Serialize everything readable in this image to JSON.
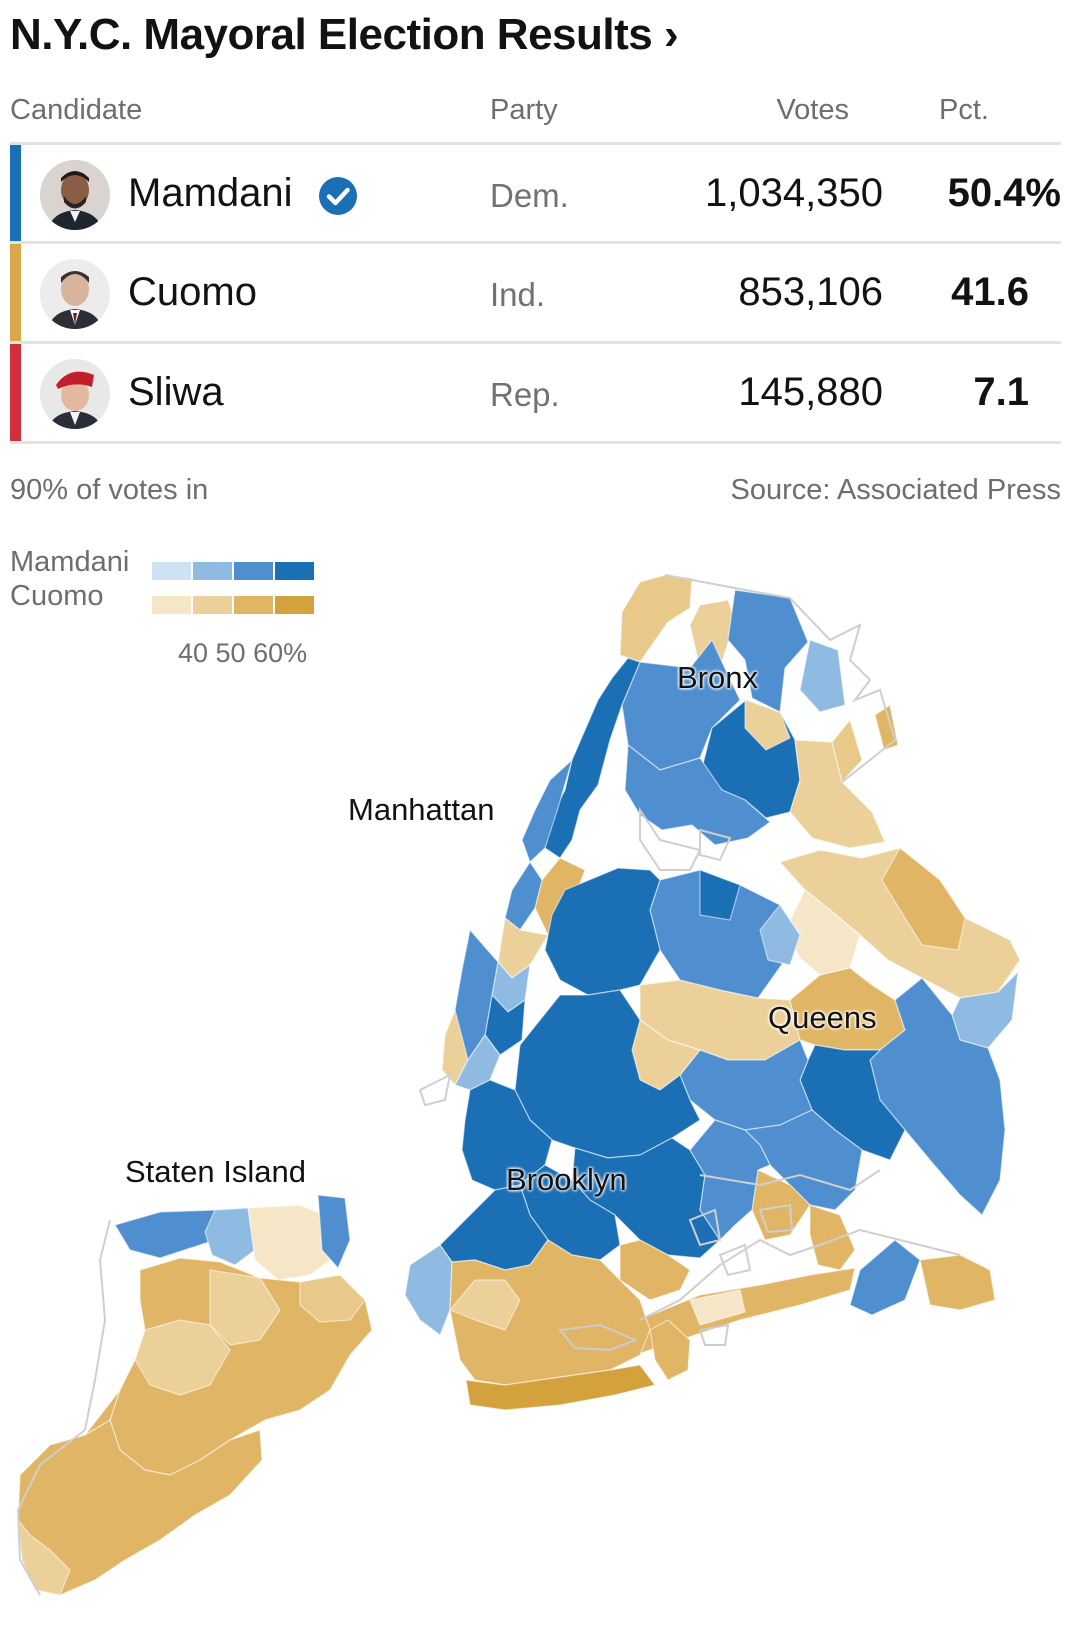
{
  "header": {
    "title": "N.Y.C. Mayoral Election Results ›"
  },
  "table": {
    "columns": {
      "candidate": "Candidate",
      "party": "Party",
      "votes": "Votes",
      "pct": "Pct."
    },
    "rows": [
      {
        "name": "Mamdani",
        "party": "Dem.",
        "votes": "1,034,350",
        "pct": "50.4%",
        "winner": true,
        "color": "#1a6fb5"
      },
      {
        "name": "Cuomo",
        "party": "Ind.",
        "votes": "853,106",
        "pct": "41.6",
        "winner": false,
        "color": "#d9a84a"
      },
      {
        "name": "Sliwa",
        "party": "Rep.",
        "votes": "145,880",
        "pct": "7.1",
        "winner": false,
        "color": "#d0303a"
      }
    ],
    "reporting": "90% of votes in",
    "source": "Source: Associated Press"
  },
  "legend": {
    "mamdani_label": "Mamdani",
    "cuomo_label": "Cuomo",
    "ticks": "40 50 60%",
    "mamdani_colors": [
      "#cce3f5",
      "#8fbbe2",
      "#4f8fcf",
      "#1a6fb5"
    ],
    "cuomo_colors": [
      "#f5e6c8",
      "#ecd09a",
      "#e0b565",
      "#d4a23c"
    ]
  },
  "map": {
    "boroughs": {
      "bronx": "Bronx",
      "manhattan": "Manhattan",
      "queens": "Queens",
      "brooklyn": "Brooklyn",
      "staten_island": "Staten Island"
    }
  }
}
